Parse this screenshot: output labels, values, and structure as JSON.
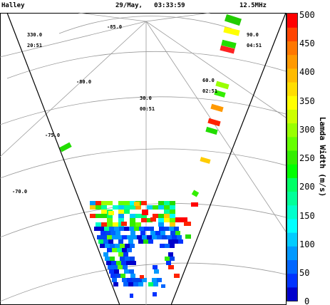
{
  "header": {
    "station": "Halley",
    "datetime": "29/May,   03:33:59",
    "frequency": "12.5MHz"
  },
  "colorbar": {
    "label": "Lamda Width (m/s)",
    "ticks": [
      "500",
      "450",
      "400",
      "350",
      "300",
      "250",
      "200",
      "150",
      "100",
      "50",
      "0"
    ],
    "colors": [
      "#0000cc",
      "#0033ff",
      "#0066ff",
      "#0099ff",
      "#00ccff",
      "#00ffff",
      "#00ffcc",
      "#00ff99",
      "#00ff66",
      "#00ff00",
      "#33ee00",
      "#66ff00",
      "#99ff00",
      "#ccff00",
      "#ffff00",
      "#ffdd00",
      "#ffbb00",
      "#ff9900",
      "#ff7700",
      "#ff4400",
      "#ff0000"
    ]
  },
  "grid_labels": [
    {
      "id": "lon-330",
      "text": "330.0"
    },
    {
      "id": "mlt-2051",
      "text": "20:51"
    },
    {
      "id": "lat-850",
      "text": "-85.0"
    },
    {
      "id": "lon-90",
      "text": "90.0"
    },
    {
      "id": "mlt-0451",
      "text": "04:51"
    },
    {
      "id": "lat-800",
      "text": "-80.0"
    },
    {
      "id": "lon-30",
      "text": "30.0"
    },
    {
      "id": "mlt-0051",
      "text": "00:51"
    },
    {
      "id": "lon-60",
      "text": "60.0"
    },
    {
      "id": "mlt-0251",
      "text": "02:51"
    },
    {
      "id": "lat-750",
      "text": "-75.0"
    },
    {
      "id": "lat-700",
      "text": "-70.0"
    }
  ],
  "chart_data": {
    "type": "heatmap",
    "title": "",
    "xlabel": "",
    "ylabel": "Lamda Width (m/s)",
    "colorscale_range": [
      0,
      500
    ],
    "colorscale_ticks": [
      0,
      50,
      100,
      150,
      200,
      250,
      300,
      350,
      400,
      450,
      500
    ]
  }
}
